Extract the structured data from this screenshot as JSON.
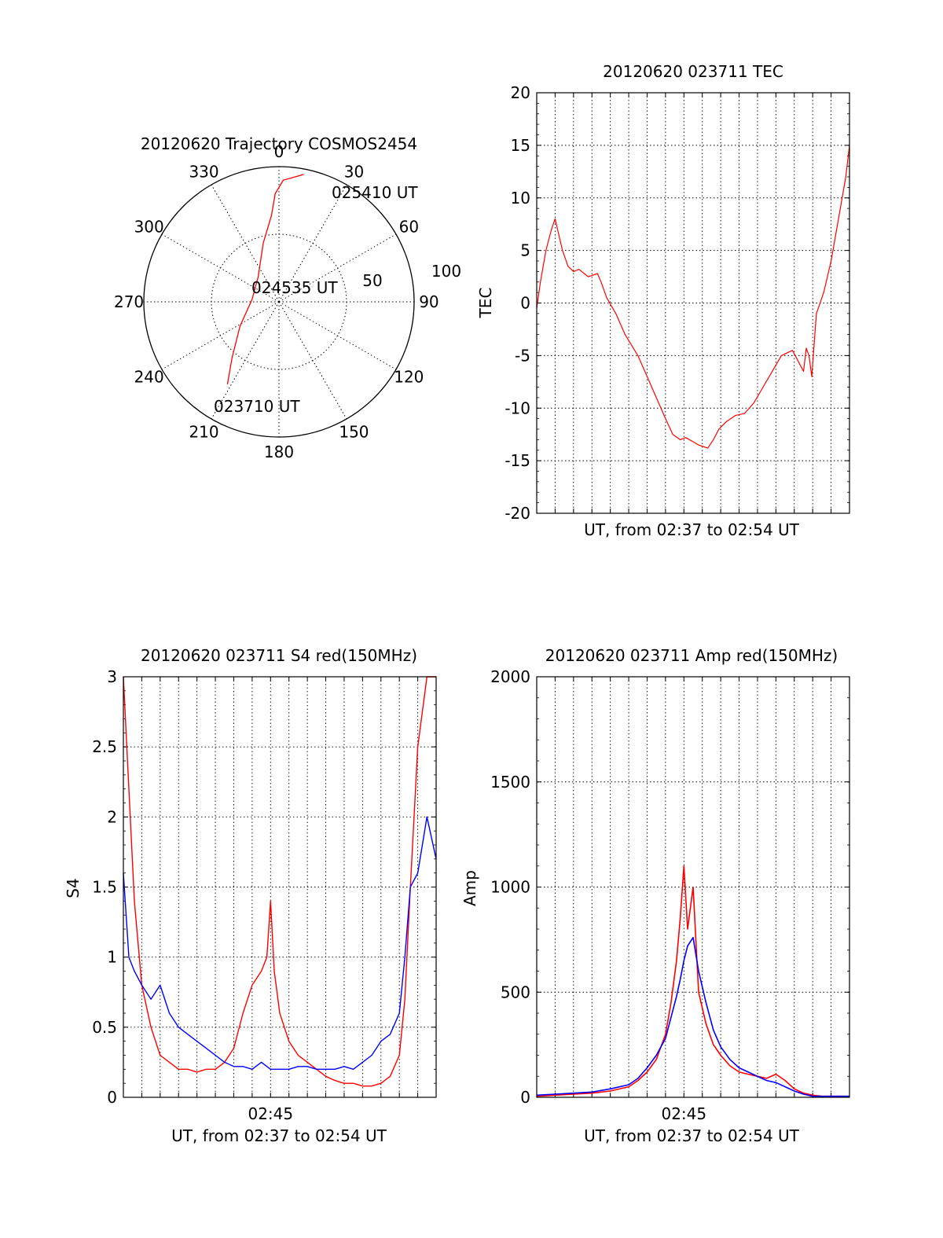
{
  "chart_data": [
    {
      "type": "polar",
      "title": "20120620 Trajectory COSMOS2454",
      "angle_labels": [
        "0",
        "30",
        "60",
        "90",
        "120",
        "150",
        "180",
        "210",
        "240",
        "270",
        "300",
        "330"
      ],
      "radius_labels": [
        "50",
        "100"
      ],
      "rlim": [
        0,
        100
      ],
      "grid": true,
      "series": [
        {
          "color": "#ff0000",
          "points": [
            {
              "azimuth": 212,
              "elevation_offset": 72
            },
            {
              "azimuth": 220,
              "elevation_offset": 54
            },
            {
              "azimuth": 238,
              "elevation_offset": 34
            },
            {
              "azimuth": 275,
              "elevation_offset": 20
            },
            {
              "azimuth": 320,
              "elevation_offset": 24
            },
            {
              "azimuth": 345,
              "elevation_offset": 45
            },
            {
              "azimuth": 355,
              "elevation_offset": 64
            },
            {
              "azimuth": 358,
              "elevation_offset": 80
            },
            {
              "azimuth": 2,
              "elevation_offset": 90
            },
            {
              "azimuth": 11,
              "elevation_offset": 96
            }
          ]
        }
      ],
      "annotations": [
        {
          "text": "025410 UT",
          "near": "end"
        },
        {
          "text": "024535 UT",
          "near": "center"
        },
        {
          "text": "023710 UT",
          "near": "start"
        }
      ]
    },
    {
      "type": "line",
      "title": "20120620 023711 TEC",
      "xlabel": "UT, from 02:37 to 02:54 UT",
      "ylabel": "TEC",
      "xlim": [
        0,
        17
      ],
      "ylim": [
        -20,
        20
      ],
      "yticks": [
        -20,
        -15,
        -10,
        -5,
        0,
        5,
        10,
        15,
        20
      ],
      "grid": true,
      "series": [
        {
          "color": "#ff0000",
          "x": [
            0,
            0.2,
            0.5,
            0.8,
            1.0,
            1.2,
            1.4,
            1.7,
            2.0,
            2.3,
            2.8,
            3.3,
            3.5,
            3.8,
            4.3,
            4.8,
            5.5,
            6.0,
            6.5,
            7.0,
            7.4,
            7.8,
            8.1,
            8.5,
            8.8,
            9.3,
            9.6,
            9.9,
            10.3,
            10.8,
            11.3,
            11.8,
            12.3,
            12.8,
            13.3,
            13.9,
            14.5,
            14.65,
            14.8,
            14.95,
            15.2,
            15.6,
            16.0,
            16.4,
            16.8,
            17.0
          ],
          "y": [
            -0.5,
            2,
            5,
            7,
            8,
            6.5,
            5,
            3.5,
            3,
            3.2,
            2.5,
            2.8,
            2,
            0.5,
            -1,
            -3,
            -5,
            -7,
            -9,
            -11,
            -12.5,
            -13,
            -12.8,
            -13.2,
            -13.5,
            -13.8,
            -13,
            -12,
            -11.3,
            -10.7,
            -10.5,
            -9.5,
            -8,
            -6.5,
            -5,
            -4.5,
            -6.5,
            -4.3,
            -5,
            -7,
            -1,
            1,
            4,
            8,
            12,
            15
          ]
        }
      ]
    },
    {
      "type": "line",
      "title": "20120620 023711 S4 red(150MHz)",
      "xlabel": "UT, from 02:37 to 02:54 UT",
      "ylabel": "S4",
      "xlim": [
        0,
        17
      ],
      "ylim": [
        0,
        3
      ],
      "yticks": [
        0,
        0.5,
        1,
        1.5,
        2,
        2.5,
        3
      ],
      "xticks": [
        {
          "value": 8,
          "label": "02:45"
        }
      ],
      "grid": true,
      "series": [
        {
          "color": "#ff0000",
          "x": [
            0,
            0.3,
            0.6,
            1.0,
            1.5,
            2.0,
            2.5,
            3.0,
            3.5,
            4.0,
            4.5,
            5.0,
            5.5,
            6.0,
            6.5,
            7.0,
            7.5,
            7.8,
            8.0,
            8.2,
            8.5,
            9.0,
            9.5,
            10.0,
            10.5,
            11.0,
            11.5,
            12.0,
            12.5,
            13.0,
            13.5,
            14.0,
            14.5,
            15.0,
            15.3,
            15.6,
            16.0,
            16.5,
            17.0
          ],
          "y": [
            3,
            2.2,
            1.4,
            0.8,
            0.5,
            0.3,
            0.25,
            0.2,
            0.2,
            0.18,
            0.2,
            0.2,
            0.25,
            0.35,
            0.6,
            0.8,
            0.9,
            1.0,
            1.4,
            0.9,
            0.6,
            0.4,
            0.3,
            0.25,
            0.2,
            0.15,
            0.12,
            0.1,
            0.1,
            0.08,
            0.08,
            0.1,
            0.15,
            0.3,
            0.7,
            1.5,
            2.5,
            3,
            3
          ]
        },
        {
          "color": "#0000ff",
          "x": [
            0,
            0.3,
            0.6,
            1.0,
            1.5,
            2.0,
            2.5,
            3.0,
            3.5,
            4.0,
            4.5,
            5.0,
            5.5,
            6.0,
            6.5,
            7.0,
            7.5,
            8.0,
            8.5,
            9.0,
            9.5,
            10.0,
            10.5,
            11.0,
            11.5,
            12.0,
            12.5,
            13.0,
            13.5,
            14.0,
            14.5,
            15.0,
            15.3,
            15.6,
            16.0,
            16.5,
            17.0
          ],
          "y": [
            1.6,
            1.0,
            0.9,
            0.8,
            0.7,
            0.8,
            0.6,
            0.5,
            0.45,
            0.4,
            0.35,
            0.3,
            0.25,
            0.22,
            0.22,
            0.2,
            0.25,
            0.2,
            0.2,
            0.2,
            0.22,
            0.22,
            0.2,
            0.2,
            0.2,
            0.22,
            0.2,
            0.25,
            0.3,
            0.4,
            0.45,
            0.6,
            1.0,
            1.5,
            1.6,
            2.0,
            1.7
          ]
        }
      ]
    },
    {
      "type": "line",
      "title": "20120620 023711 Amp red(150MHz)",
      "xlabel": "UT, from 02:37 to 02:54 UT",
      "ylabel": "Amp",
      "xlim": [
        0,
        17
      ],
      "ylim": [
        0,
        2000
      ],
      "yticks": [
        0,
        500,
        1000,
        1500,
        2000
      ],
      "xticks": [
        {
          "value": 8,
          "label": "02:45"
        }
      ],
      "grid": true,
      "series": [
        {
          "color": "#ff0000",
          "x": [
            0,
            1.0,
            2.0,
            3.0,
            4.0,
            5.0,
            5.5,
            6.0,
            6.5,
            7.0,
            7.3,
            7.6,
            7.8,
            8.0,
            8.2,
            8.5,
            8.8,
            9.2,
            9.6,
            10.0,
            10.5,
            11.0,
            11.5,
            12.0,
            12.5,
            13.0,
            13.5,
            14.0,
            14.5,
            15.0,
            15.5,
            16.0,
            17.0
          ],
          "y": [
            5,
            10,
            15,
            20,
            30,
            50,
            80,
            120,
            180,
            300,
            450,
            650,
            850,
            1100,
            800,
            1000,
            500,
            350,
            250,
            200,
            150,
            120,
            110,
            100,
            90,
            110,
            80,
            40,
            20,
            10,
            5,
            5,
            5
          ]
        },
        {
          "color": "#0000ff",
          "x": [
            0,
            1.0,
            2.0,
            3.0,
            4.0,
            5.0,
            5.5,
            6.0,
            6.5,
            7.0,
            7.3,
            7.6,
            7.8,
            8.0,
            8.2,
            8.5,
            8.8,
            9.2,
            9.6,
            10.0,
            10.5,
            11.0,
            11.5,
            12.0,
            12.5,
            13.0,
            13.5,
            14.0,
            14.5,
            15.0,
            15.5,
            16.0,
            17.0
          ],
          "y": [
            10,
            15,
            20,
            25,
            40,
            60,
            90,
            140,
            200,
            280,
            380,
            480,
            560,
            650,
            720,
            760,
            600,
            450,
            320,
            240,
            180,
            140,
            120,
            100,
            80,
            70,
            50,
            30,
            15,
            5,
            5,
            5,
            5
          ]
        }
      ]
    }
  ]
}
